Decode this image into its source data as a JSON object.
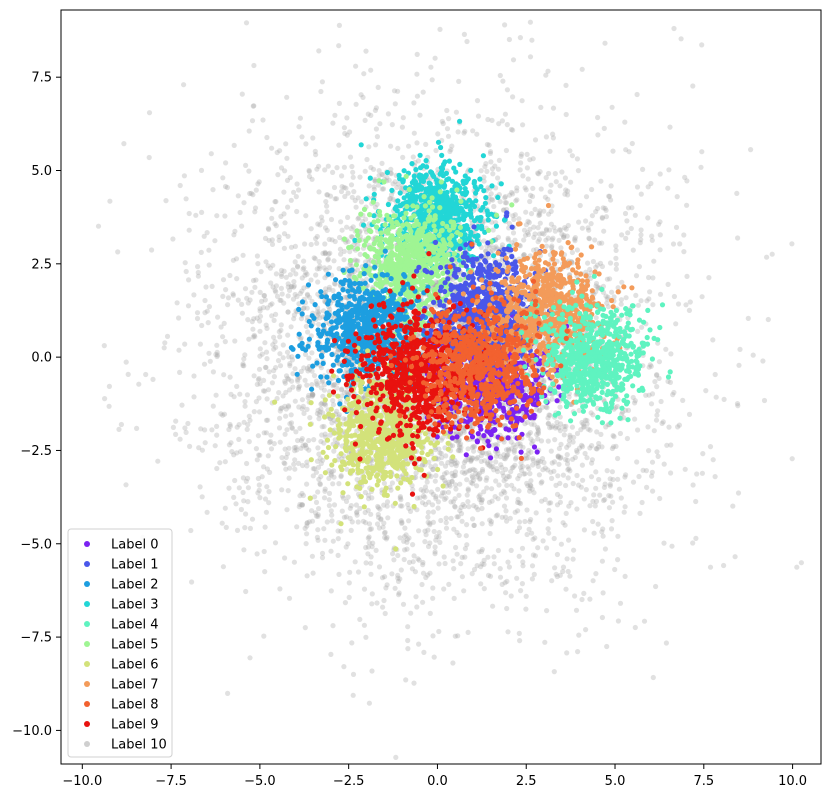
{
  "chart_data": {
    "type": "scatter",
    "title": "",
    "xlabel": "",
    "ylabel": "",
    "xlim": [
      -10.6,
      10.8
    ],
    "ylim": [
      -10.9,
      9.3
    ],
    "xticks": [
      -10.0,
      -7.5,
      -5.0,
      -2.5,
      0.0,
      2.5,
      5.0,
      7.5,
      10.0
    ],
    "xtick_labels": [
      "−10.0",
      "−7.5",
      "−5.0",
      "−2.5",
      "0.0",
      "2.5",
      "5.0",
      "7.5",
      "10.0"
    ],
    "yticks": [
      -10.0,
      -7.5,
      -5.0,
      -2.5,
      0.0,
      2.5,
      5.0,
      7.5
    ],
    "ytick_labels": [
      "−10.0",
      "−7.5",
      "−5.0",
      "−2.5",
      "0.0",
      "2.5",
      "5.0",
      "7.5"
    ],
    "grid": false,
    "legend_position": "lower-left",
    "series": [
      {
        "name": "Label 0",
        "color": "#7b22f2",
        "center": [
          1.5,
          -0.6
        ],
        "spread": 0.75,
        "count": 700,
        "alpha": 1.0
      },
      {
        "name": "Label 1",
        "color": "#4a57ea",
        "center": [
          1.3,
          1.3
        ],
        "spread": 0.75,
        "count": 700,
        "alpha": 1.0
      },
      {
        "name": "Label 2",
        "color": "#1d9ee0",
        "center": [
          -2.0,
          0.7
        ],
        "spread": 0.7,
        "count": 700,
        "alpha": 1.0
      },
      {
        "name": "Label 3",
        "color": "#22d6d6",
        "center": [
          0.0,
          3.8
        ],
        "spread": 0.7,
        "count": 700,
        "alpha": 1.0
      },
      {
        "name": "Label 4",
        "color": "#5ff3c0",
        "center": [
          4.4,
          0.0
        ],
        "spread": 0.7,
        "count": 700,
        "alpha": 1.0
      },
      {
        "name": "Label 5",
        "color": "#9ff593",
        "center": [
          -0.8,
          2.5
        ],
        "spread": 0.75,
        "count": 700,
        "alpha": 1.0
      },
      {
        "name": "Label 6",
        "color": "#d3e27a",
        "center": [
          -1.6,
          -2.0
        ],
        "spread": 0.7,
        "count": 700,
        "alpha": 1.0
      },
      {
        "name": "Label 7",
        "color": "#f39b5a",
        "center": [
          3.1,
          1.2
        ],
        "spread": 0.75,
        "count": 700,
        "alpha": 1.0
      },
      {
        "name": "Label 8",
        "color": "#f2612f",
        "center": [
          1.2,
          -0.2
        ],
        "spread": 0.8,
        "count": 700,
        "alpha": 1.0
      },
      {
        "name": "Label 9",
        "color": "#e8120f",
        "center": [
          -0.6,
          -0.4
        ],
        "spread": 0.85,
        "count": 700,
        "alpha": 1.0
      },
      {
        "name": "Label 10",
        "color": "#a8a8a8",
        "center": [
          0.0,
          0.0
        ],
        "spread": 3.0,
        "count": 5000,
        "alpha": 0.35
      }
    ],
    "draw_order": [
      10,
      3,
      5,
      2,
      6,
      0,
      1,
      7,
      4,
      9,
      8
    ]
  }
}
